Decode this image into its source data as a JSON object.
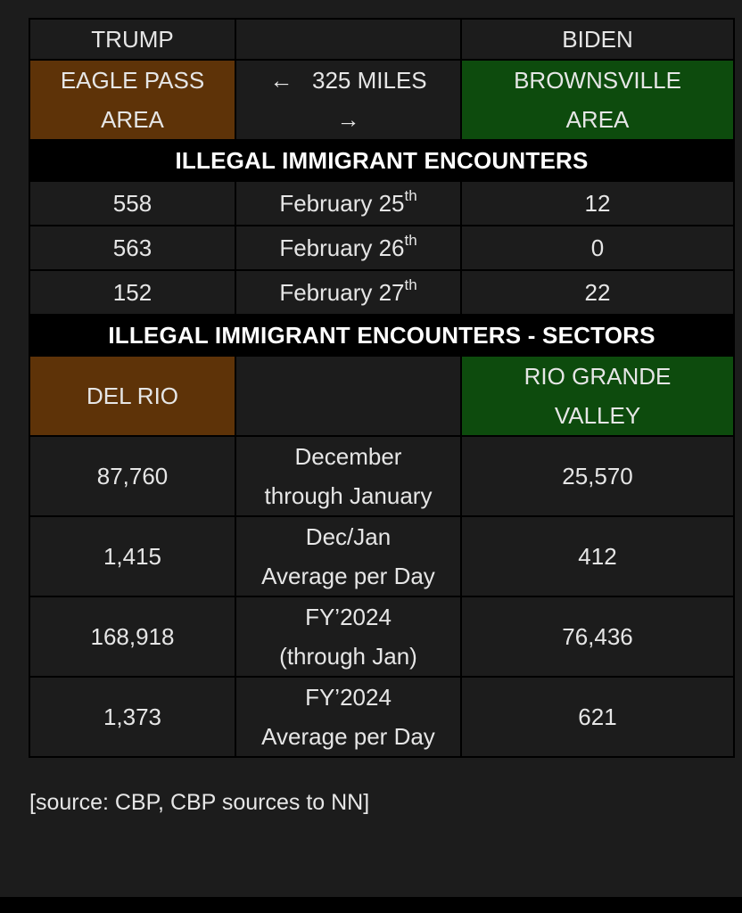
{
  "header": {
    "left": "TRUMP",
    "middle": "",
    "right": "BIDEN"
  },
  "locations": {
    "left_line1": "EAGLE PASS",
    "left_line2": "AREA",
    "middle_line1": "←   325 MILES",
    "middle_line2": "→",
    "right_line1": "BROWNSVILLE",
    "right_line2": "AREA"
  },
  "section1_title": "ILLEGAL IMMIGRANT ENCOUNTERS",
  "daily_rows": [
    {
      "left": "558",
      "date": "February 25",
      "suffix": "th",
      "right": "12"
    },
    {
      "left": "563",
      "date": "February 26",
      "suffix": "th",
      "right": "0"
    },
    {
      "left": "152",
      "date": "February 27",
      "suffix": "th",
      "right": "22"
    }
  ],
  "section2_title": "ILLEGAL IMMIGRANT ENCOUNTERS - SECTORS",
  "sectors": {
    "left": "DEL RIO",
    "middle": "",
    "right_line1": "RIO GRANDE",
    "right_line2": "VALLEY"
  },
  "stat_rows": [
    {
      "left": "87,760",
      "label_line1": "December",
      "label_line2": "through January",
      "right": "25,570"
    },
    {
      "left": "1,415",
      "label_line1": "Dec/Jan",
      "label_line2": "Average per Day",
      "right": "412"
    },
    {
      "left": "168,918",
      "label_line1": "FY’2024",
      "label_line2": "(through Jan)",
      "right": "76,436"
    },
    {
      "left": "1,373",
      "label_line1": "FY’2024",
      "label_line2": "Average per Day",
      "right": "621"
    }
  ],
  "source": "[source: CBP, CBP sources to NN]",
  "colors": {
    "trump_cell": "#5e3308",
    "biden_cell": "#0d4b0d",
    "background": "#1c1c1c",
    "section_band": "#000000"
  }
}
